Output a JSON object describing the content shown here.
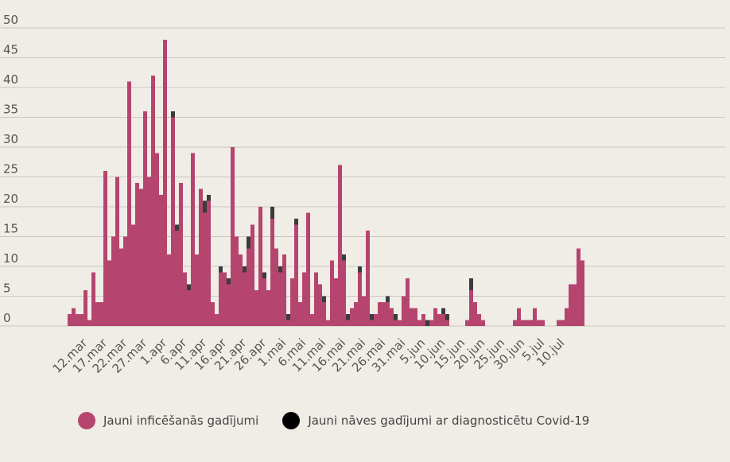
{
  "colors": {
    "background": "#efede6",
    "infections": "#b5456f",
    "deaths": "#3b3b3b",
    "grid": "#c9c7c0"
  },
  "legend": {
    "infections_label": "Jauni inficēšanās gadījumi",
    "deaths_label": "Jauni nāves gadījumi ar diagnosticētu Covid-19"
  },
  "chart_data": {
    "type": "bar",
    "stacked": true,
    "title": "",
    "xlabel": "",
    "ylabel": "",
    "ylim": [
      0,
      50
    ],
    "yticks": [
      0,
      5,
      10,
      15,
      20,
      25,
      30,
      35,
      40,
      45,
      50
    ],
    "xtick_labels": [
      "12.mar",
      "17.mar",
      "22.mar",
      "27.mar",
      "1.apr",
      "6.apr",
      "11.apr",
      "16.apr",
      "21.apr",
      "26.apr",
      "1.mai",
      "6.mai",
      "11.mai",
      "16.mai",
      "21.mai",
      "26.mai",
      "31.mai",
      "5.jun",
      "10.jun",
      "15.jun",
      "20.jun",
      "25.jun",
      "30.jun",
      "5.jul",
      "10.jul"
    ],
    "grid": true,
    "legend_position": "bottom",
    "first_date": "2020-03-09",
    "series": [
      {
        "name": "Jauni inficēšanās gadījumi",
        "values": [
          2,
          3,
          2,
          2,
          6,
          1,
          9,
          4,
          4,
          26,
          11,
          15,
          25,
          13,
          15,
          41,
          17,
          24,
          23,
          36,
          25,
          42,
          29,
          22,
          48,
          12,
          35,
          16,
          24,
          9,
          6,
          29,
          12,
          23,
          19,
          21,
          4,
          2,
          9,
          9,
          7,
          30,
          15,
          12,
          9,
          13,
          17,
          6,
          20,
          8,
          6,
          18,
          13,
          9,
          12,
          1,
          8,
          17,
          4,
          9,
          19,
          2,
          9,
          7,
          4,
          1,
          11,
          8,
          27,
          11,
          1,
          3,
          4,
          9,
          5,
          16,
          1,
          2,
          4,
          4,
          4,
          3,
          1,
          1,
          5,
          8,
          3,
          3,
          1,
          2,
          0,
          1,
          3,
          2,
          2,
          1,
          0,
          0,
          0,
          0,
          1,
          6,
          4,
          2,
          1,
          0,
          0,
          0,
          0,
          0,
          0,
          0,
          1,
          3,
          1,
          1,
          1,
          3,
          1,
          1,
          0,
          0,
          0,
          1,
          1,
          3,
          7,
          7,
          13,
          11
        ]
      },
      {
        "name": "Jauni nāves gadījumi ar diagnosticētu Covid-19",
        "values": [
          0,
          0,
          0,
          0,
          0,
          0,
          0,
          0,
          0,
          0,
          0,
          0,
          0,
          0,
          0,
          0,
          0,
          0,
          0,
          0,
          0,
          0,
          0,
          0,
          0,
          0,
          1,
          1,
          0,
          0,
          1,
          0,
          0,
          0,
          2,
          1,
          0,
          0,
          1,
          0,
          1,
          0,
          0,
          0,
          1,
          2,
          0,
          0,
          0,
          1,
          0,
          2,
          0,
          1,
          0,
          1,
          0,
          1,
          0,
          0,
          0,
          0,
          0,
          0,
          1,
          0,
          0,
          0,
          0,
          1,
          1,
          0,
          0,
          1,
          0,
          0,
          1,
          0,
          0,
          0,
          1,
          0,
          1,
          0,
          0,
          0,
          0,
          0,
          0,
          0,
          1,
          0,
          0,
          0,
          1,
          1,
          0,
          0,
          0,
          0,
          0,
          2,
          0,
          0,
          0,
          0,
          0,
          0,
          0,
          0,
          0,
          0,
          0,
          0,
          0,
          0,
          0,
          0,
          0,
          0,
          0,
          0,
          0,
          0,
          0,
          0,
          0,
          0,
          0,
          0
        ]
      }
    ]
  }
}
